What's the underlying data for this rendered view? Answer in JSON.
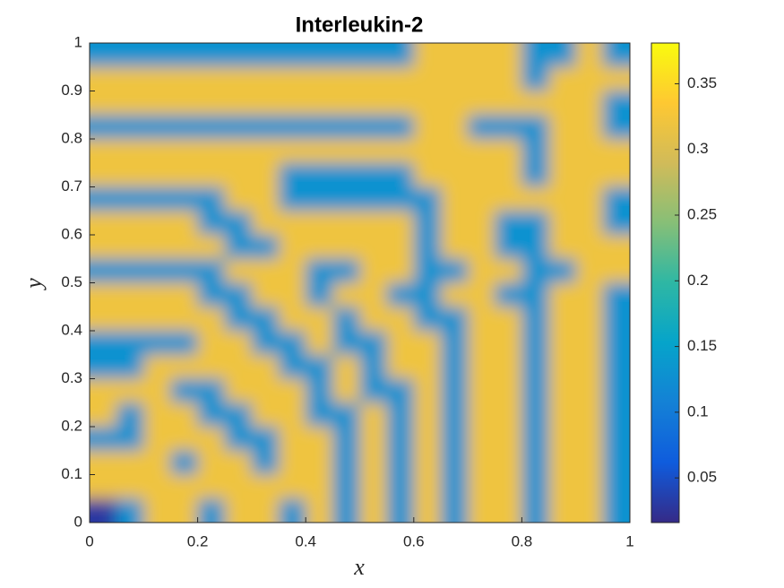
{
  "chart_data": {
    "type": "heatmap",
    "title": "Interleukin-2",
    "x_label": "x",
    "y_label": "y",
    "xlim": [
      0,
      1
    ],
    "ylim": [
      0,
      1
    ],
    "xticks": [
      0,
      0.2,
      0.4,
      0.6,
      0.8,
      1
    ],
    "yticks": [
      0,
      0.1,
      0.2,
      0.3,
      0.4,
      0.5,
      0.6,
      0.7,
      0.8,
      0.9,
      1
    ],
    "clim": [
      0.016,
      0.381
    ],
    "cticks": [
      0.05,
      0.1,
      0.15,
      0.2,
      0.25,
      0.3,
      0.35
    ],
    "colormap": [
      "#352a87",
      "#0f5cdd",
      "#1481d6",
      "#06a4ca",
      "#2eb7a4",
      "#87bf77",
      "#d1bb59",
      "#fec832",
      "#f9fb0e"
    ],
    "z": [
      [
        0.13,
        0.13,
        0.13,
        0.13,
        0.13,
        0.13,
        0.13,
        0.13,
        0.13,
        0.13,
        0.13,
        0.13,
        0.32,
        0.32,
        0.32,
        0.32,
        0.13,
        0.13,
        0.32,
        0.13
      ],
      [
        0.32,
        0.32,
        0.32,
        0.32,
        0.32,
        0.32,
        0.32,
        0.32,
        0.32,
        0.32,
        0.32,
        0.32,
        0.32,
        0.32,
        0.32,
        0.32,
        0.13,
        0.32,
        0.32,
        0.32
      ],
      [
        0.32,
        0.32,
        0.32,
        0.32,
        0.32,
        0.32,
        0.32,
        0.32,
        0.32,
        0.32,
        0.32,
        0.32,
        0.32,
        0.32,
        0.32,
        0.32,
        0.32,
        0.32,
        0.32,
        0.13
      ],
      [
        0.13,
        0.13,
        0.13,
        0.13,
        0.13,
        0.13,
        0.13,
        0.13,
        0.13,
        0.13,
        0.13,
        0.13,
        0.32,
        0.32,
        0.13,
        0.13,
        0.13,
        0.32,
        0.32,
        0.13
      ],
      [
        0.32,
        0.32,
        0.32,
        0.32,
        0.32,
        0.32,
        0.32,
        0.32,
        0.32,
        0.32,
        0.32,
        0.32,
        0.32,
        0.32,
        0.32,
        0.32,
        0.13,
        0.32,
        0.32,
        0.32
      ],
      [
        0.32,
        0.32,
        0.32,
        0.32,
        0.32,
        0.32,
        0.32,
        0.13,
        0.13,
        0.13,
        0.13,
        0.13,
        0.32,
        0.32,
        0.32,
        0.32,
        0.13,
        0.32,
        0.32,
        0.32
      ],
      [
        0.13,
        0.13,
        0.13,
        0.13,
        0.13,
        0.32,
        0.32,
        0.13,
        0.13,
        0.13,
        0.13,
        0.13,
        0.13,
        0.32,
        0.32,
        0.32,
        0.32,
        0.32,
        0.32,
        0.13
      ],
      [
        0.32,
        0.32,
        0.32,
        0.32,
        0.13,
        0.13,
        0.32,
        0.32,
        0.32,
        0.32,
        0.32,
        0.32,
        0.13,
        0.32,
        0.32,
        0.13,
        0.13,
        0.32,
        0.32,
        0.13
      ],
      [
        0.32,
        0.32,
        0.32,
        0.32,
        0.32,
        0.13,
        0.13,
        0.32,
        0.32,
        0.32,
        0.32,
        0.32,
        0.13,
        0.32,
        0.32,
        0.13,
        0.13,
        0.32,
        0.32,
        0.32
      ],
      [
        0.13,
        0.13,
        0.13,
        0.13,
        0.13,
        0.32,
        0.32,
        0.32,
        0.13,
        0.13,
        0.32,
        0.32,
        0.13,
        0.13,
        0.32,
        0.32,
        0.13,
        0.13,
        0.32,
        0.32
      ],
      [
        0.32,
        0.32,
        0.32,
        0.32,
        0.13,
        0.13,
        0.32,
        0.32,
        0.13,
        0.32,
        0.32,
        0.13,
        0.13,
        0.32,
        0.32,
        0.13,
        0.13,
        0.32,
        0.32,
        0.13
      ],
      [
        0.32,
        0.32,
        0.32,
        0.32,
        0.32,
        0.13,
        0.13,
        0.32,
        0.32,
        0.13,
        0.32,
        0.32,
        0.13,
        0.13,
        0.32,
        0.32,
        0.13,
        0.32,
        0.32,
        0.13
      ],
      [
        0.13,
        0.13,
        0.13,
        0.13,
        0.32,
        0.32,
        0.13,
        0.13,
        0.32,
        0.13,
        0.13,
        0.32,
        0.32,
        0.13,
        0.32,
        0.32,
        0.13,
        0.32,
        0.32,
        0.13
      ],
      [
        0.13,
        0.13,
        0.32,
        0.32,
        0.32,
        0.32,
        0.32,
        0.13,
        0.13,
        0.32,
        0.13,
        0.32,
        0.32,
        0.13,
        0.32,
        0.32,
        0.13,
        0.32,
        0.32,
        0.13
      ],
      [
        0.32,
        0.32,
        0.32,
        0.13,
        0.13,
        0.32,
        0.32,
        0.32,
        0.13,
        0.32,
        0.13,
        0.13,
        0.32,
        0.13,
        0.32,
        0.32,
        0.13,
        0.32,
        0.32,
        0.13
      ],
      [
        0.32,
        0.13,
        0.32,
        0.32,
        0.13,
        0.13,
        0.32,
        0.32,
        0.13,
        0.13,
        0.32,
        0.13,
        0.32,
        0.13,
        0.32,
        0.32,
        0.13,
        0.32,
        0.32,
        0.13
      ],
      [
        0.13,
        0.13,
        0.32,
        0.32,
        0.32,
        0.13,
        0.13,
        0.32,
        0.32,
        0.13,
        0.32,
        0.13,
        0.32,
        0.13,
        0.32,
        0.32,
        0.13,
        0.32,
        0.32,
        0.13
      ],
      [
        0.32,
        0.32,
        0.32,
        0.13,
        0.32,
        0.32,
        0.13,
        0.32,
        0.32,
        0.13,
        0.32,
        0.13,
        0.32,
        0.13,
        0.32,
        0.32,
        0.13,
        0.32,
        0.32,
        0.13
      ],
      [
        0.32,
        0.32,
        0.32,
        0.32,
        0.32,
        0.32,
        0.32,
        0.32,
        0.32,
        0.13,
        0.32,
        0.13,
        0.32,
        0.13,
        0.32,
        0.32,
        0.13,
        0.32,
        0.32,
        0.13
      ],
      [
        0.03,
        0.13,
        0.32,
        0.32,
        0.13,
        0.32,
        0.32,
        0.13,
        0.32,
        0.13,
        0.32,
        0.13,
        0.32,
        0.13,
        0.32,
        0.32,
        0.13,
        0.32,
        0.32,
        0.13
      ]
    ]
  }
}
